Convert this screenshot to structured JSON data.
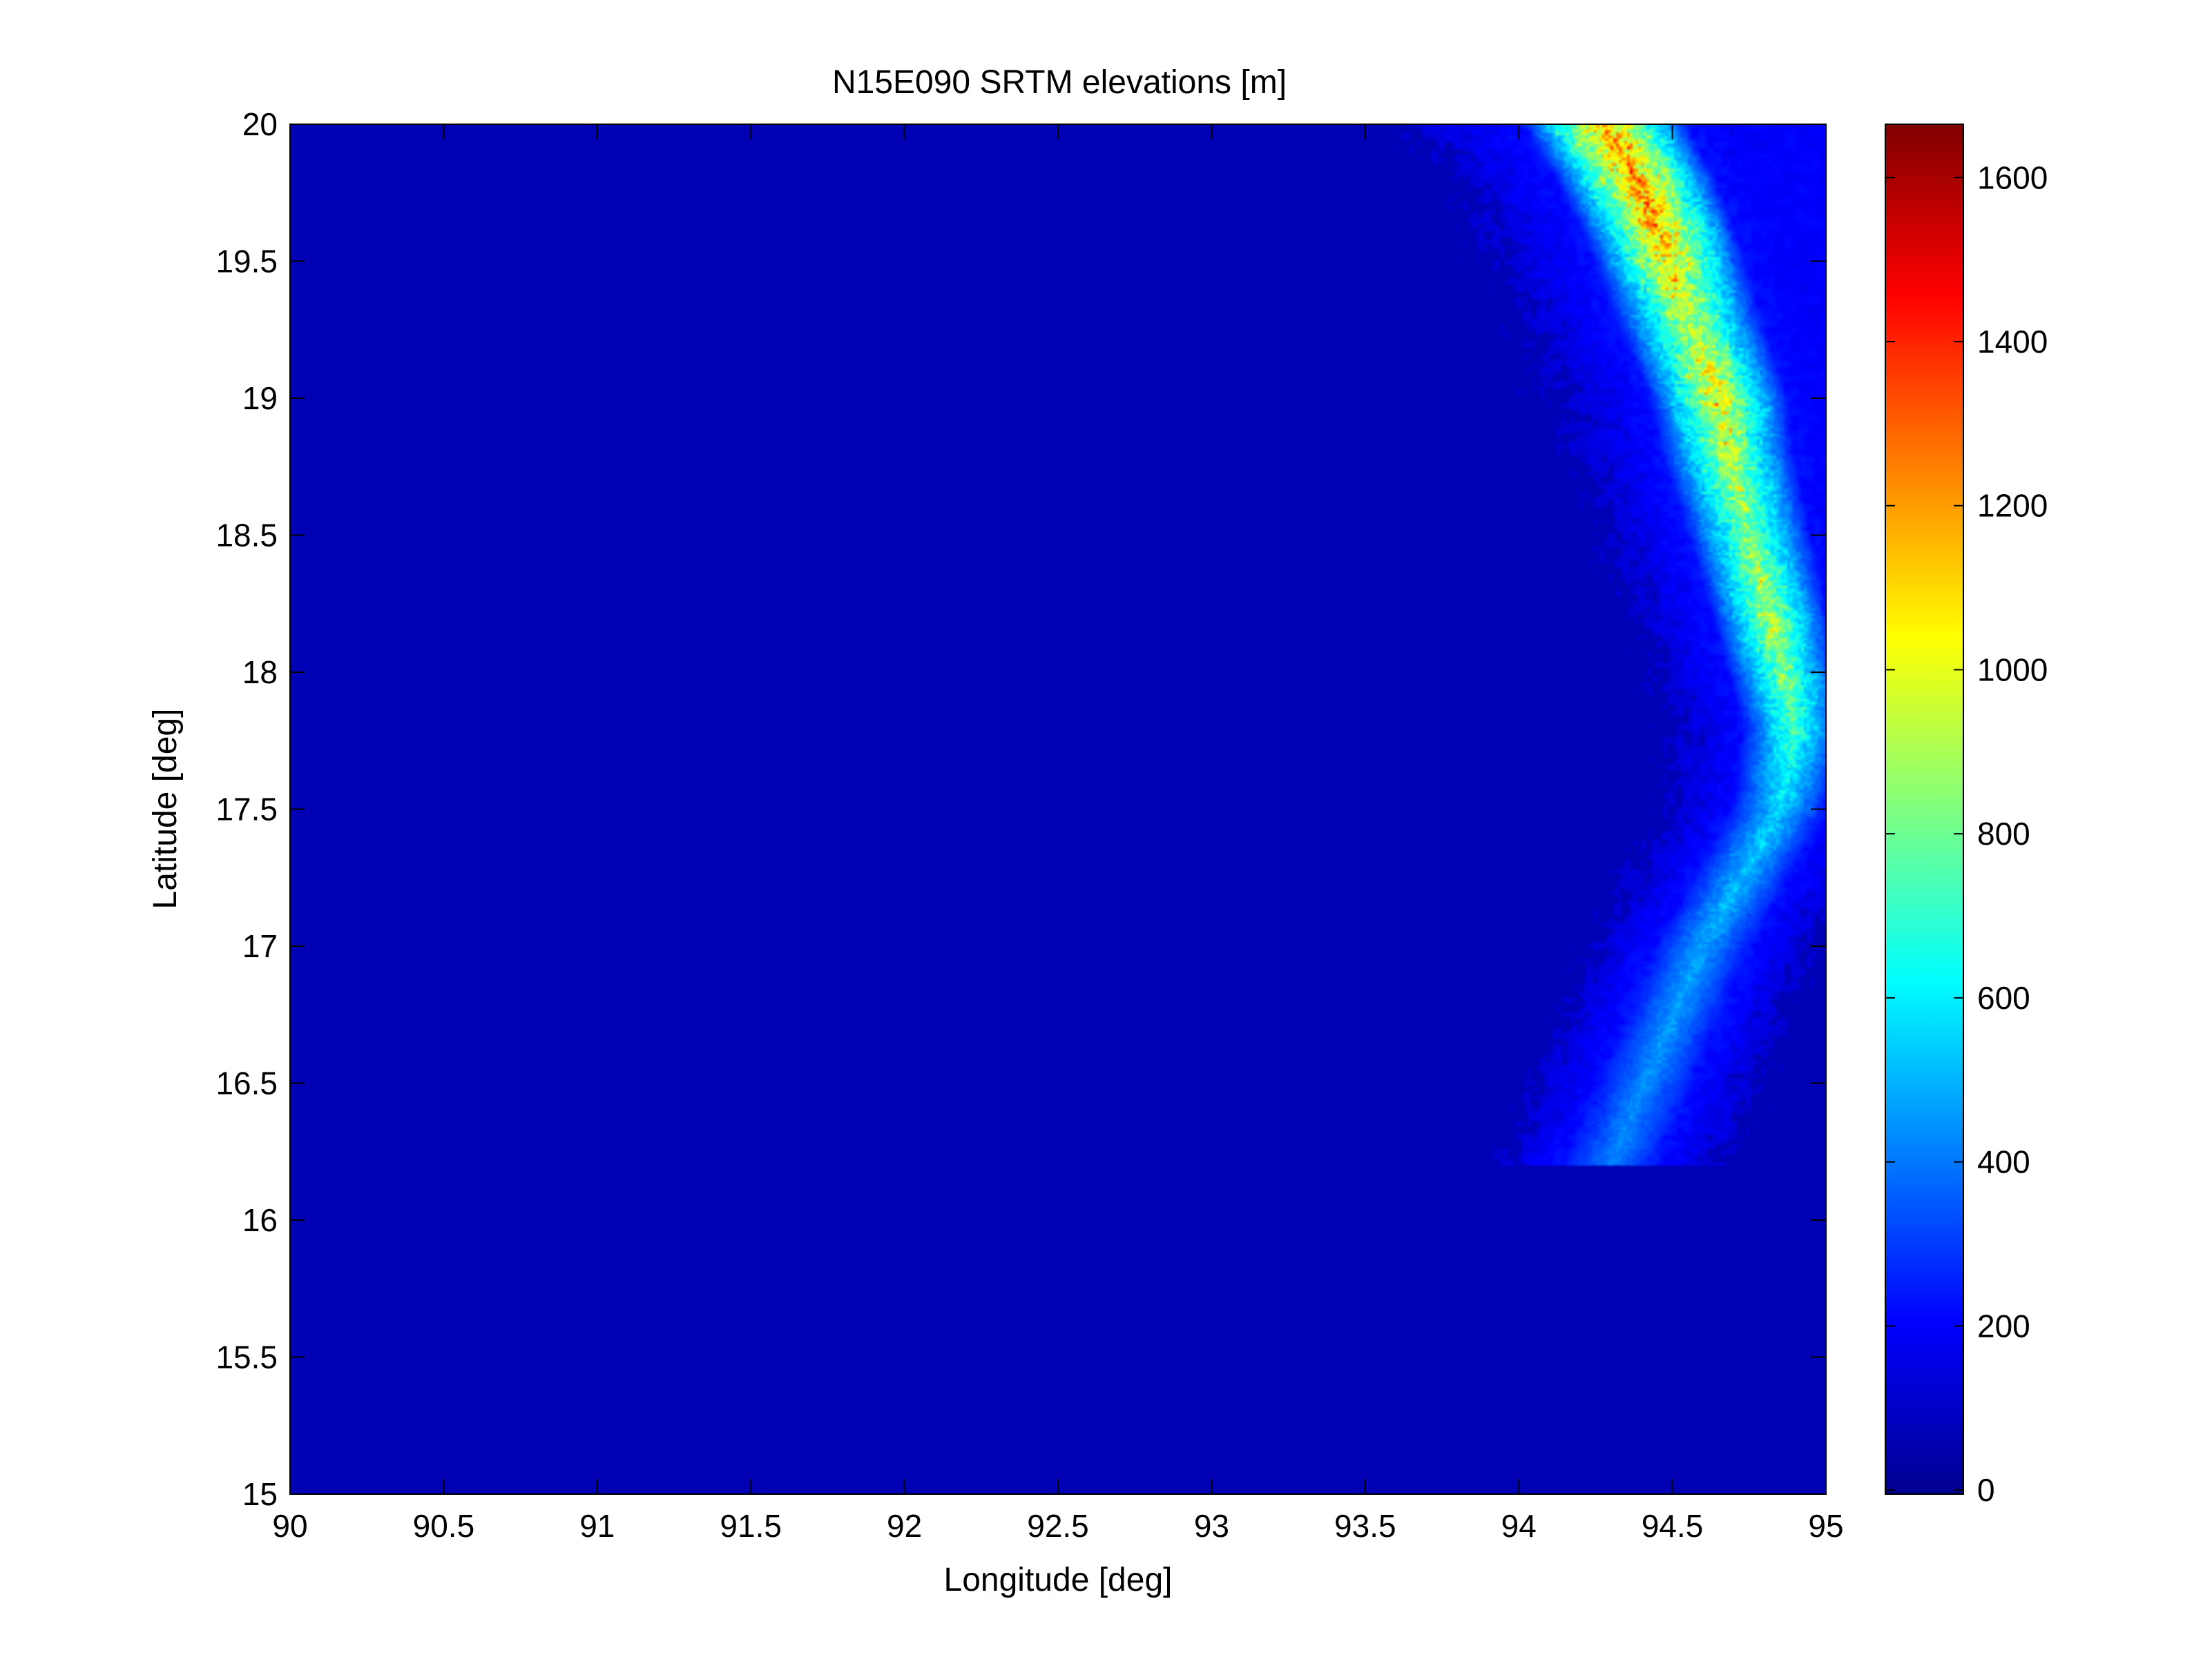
{
  "chart_data": {
    "type": "heatmap",
    "title": "N15E090 SRTM elevations [m]",
    "xlabel": "Longitude [deg]",
    "ylabel": "Latitude [deg]",
    "xlim": [
      90,
      95
    ],
    "ylim": [
      15,
      20
    ],
    "x_ticks": [
      90,
      90.5,
      91,
      91.5,
      92,
      92.5,
      93,
      93.5,
      94,
      94.5,
      95
    ],
    "x_tick_labels": [
      "90",
      "90.5",
      "91",
      "91.5",
      "92",
      "92.5",
      "93",
      "93.5",
      "94",
      "94.5",
      "95"
    ],
    "y_ticks": [
      15,
      15.5,
      16,
      16.5,
      17,
      17.5,
      18,
      18.5,
      19,
      19.5,
      20
    ],
    "y_tick_labels": [
      "15",
      "15.5",
      "16",
      "16.5",
      "17",
      "17.5",
      "18",
      "18.5",
      "19",
      "19.5",
      "20"
    ],
    "background_value": 0,
    "colorbar": {
      "colormap": "jet",
      "range": [
        -5,
        1665
      ],
      "ticks": [
        0,
        200,
        400,
        600,
        800,
        1000,
        1200,
        1400,
        1600
      ],
      "tick_labels": [
        "0",
        "200",
        "400",
        "600",
        "800",
        "1000",
        "1200",
        "1400",
        "1600"
      ]
    },
    "terrain_ridge": [
      {
        "lat": 20.0,
        "lon": 94.28,
        "peak": 1600
      },
      {
        "lat": 19.8,
        "lon": 94.38,
        "peak": 1620
      },
      {
        "lat": 19.6,
        "lon": 94.46,
        "peak": 1500
      },
      {
        "lat": 19.3,
        "lon": 94.55,
        "peak": 1150
      },
      {
        "lat": 19.0,
        "lon": 94.65,
        "peak": 1350
      },
      {
        "lat": 18.8,
        "lon": 94.68,
        "peak": 1100
      },
      {
        "lat": 18.5,
        "lon": 94.75,
        "peak": 950
      },
      {
        "lat": 18.2,
        "lon": 94.82,
        "peak": 1100
      },
      {
        "lat": 17.8,
        "lon": 94.9,
        "peak": 750
      },
      {
        "lat": 17.5,
        "lon": 94.85,
        "peak": 450
      },
      {
        "lat": 17.0,
        "lon": 94.6,
        "peak": 300
      },
      {
        "lat": 16.6,
        "lon": 94.45,
        "peak": 250
      },
      {
        "lat": 16.2,
        "lon": 94.3,
        "peak": 180
      }
    ],
    "plateau_region": {
      "lat_min": 18.6,
      "lat_max": 20.0,
      "lon_min": 94.7,
      "lon_max": 95.0,
      "elevation": 130
    }
  }
}
